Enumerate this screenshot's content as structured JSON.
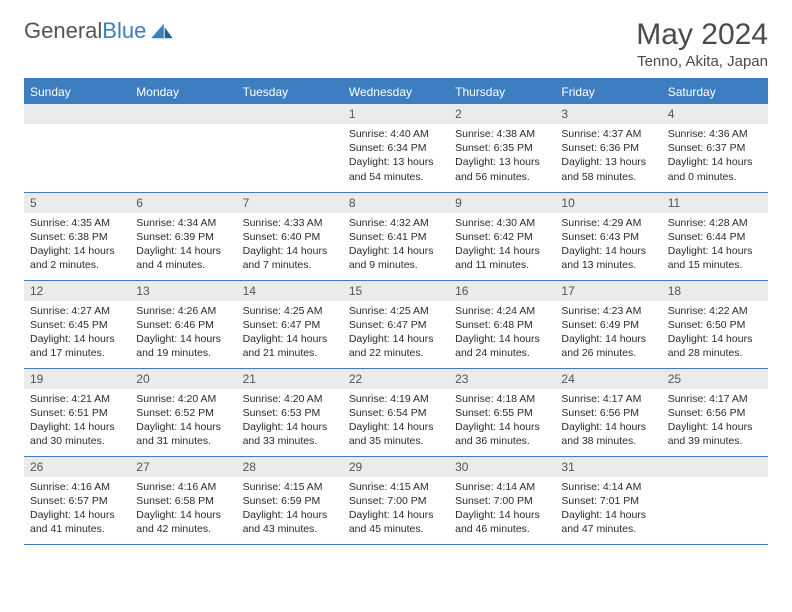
{
  "logo": {
    "text1": "General",
    "text2": "Blue"
  },
  "header": {
    "title": "May 2024",
    "location": "Tenno, Akita, Japan"
  },
  "colors": {
    "brand": "#3c7ec0",
    "headerText": "#ffffff",
    "dayStrip": "#e9ebec",
    "text": "#333333"
  },
  "dayNames": [
    "Sunday",
    "Monday",
    "Tuesday",
    "Wednesday",
    "Thursday",
    "Friday",
    "Saturday"
  ],
  "weeks": [
    [
      {
        "n": "",
        "sunrise": "",
        "sunset": "",
        "daylight": ""
      },
      {
        "n": "",
        "sunrise": "",
        "sunset": "",
        "daylight": ""
      },
      {
        "n": "",
        "sunrise": "",
        "sunset": "",
        "daylight": ""
      },
      {
        "n": "1",
        "sunrise": "Sunrise: 4:40 AM",
        "sunset": "Sunset: 6:34 PM",
        "daylight": "Daylight: 13 hours and 54 minutes."
      },
      {
        "n": "2",
        "sunrise": "Sunrise: 4:38 AM",
        "sunset": "Sunset: 6:35 PM",
        "daylight": "Daylight: 13 hours and 56 minutes."
      },
      {
        "n": "3",
        "sunrise": "Sunrise: 4:37 AM",
        "sunset": "Sunset: 6:36 PM",
        "daylight": "Daylight: 13 hours and 58 minutes."
      },
      {
        "n": "4",
        "sunrise": "Sunrise: 4:36 AM",
        "sunset": "Sunset: 6:37 PM",
        "daylight": "Daylight: 14 hours and 0 minutes."
      }
    ],
    [
      {
        "n": "5",
        "sunrise": "Sunrise: 4:35 AM",
        "sunset": "Sunset: 6:38 PM",
        "daylight": "Daylight: 14 hours and 2 minutes."
      },
      {
        "n": "6",
        "sunrise": "Sunrise: 4:34 AM",
        "sunset": "Sunset: 6:39 PM",
        "daylight": "Daylight: 14 hours and 4 minutes."
      },
      {
        "n": "7",
        "sunrise": "Sunrise: 4:33 AM",
        "sunset": "Sunset: 6:40 PM",
        "daylight": "Daylight: 14 hours and 7 minutes."
      },
      {
        "n": "8",
        "sunrise": "Sunrise: 4:32 AM",
        "sunset": "Sunset: 6:41 PM",
        "daylight": "Daylight: 14 hours and 9 minutes."
      },
      {
        "n": "9",
        "sunrise": "Sunrise: 4:30 AM",
        "sunset": "Sunset: 6:42 PM",
        "daylight": "Daylight: 14 hours and 11 minutes."
      },
      {
        "n": "10",
        "sunrise": "Sunrise: 4:29 AM",
        "sunset": "Sunset: 6:43 PM",
        "daylight": "Daylight: 14 hours and 13 minutes."
      },
      {
        "n": "11",
        "sunrise": "Sunrise: 4:28 AM",
        "sunset": "Sunset: 6:44 PM",
        "daylight": "Daylight: 14 hours and 15 minutes."
      }
    ],
    [
      {
        "n": "12",
        "sunrise": "Sunrise: 4:27 AM",
        "sunset": "Sunset: 6:45 PM",
        "daylight": "Daylight: 14 hours and 17 minutes."
      },
      {
        "n": "13",
        "sunrise": "Sunrise: 4:26 AM",
        "sunset": "Sunset: 6:46 PM",
        "daylight": "Daylight: 14 hours and 19 minutes."
      },
      {
        "n": "14",
        "sunrise": "Sunrise: 4:25 AM",
        "sunset": "Sunset: 6:47 PM",
        "daylight": "Daylight: 14 hours and 21 minutes."
      },
      {
        "n": "15",
        "sunrise": "Sunrise: 4:25 AM",
        "sunset": "Sunset: 6:47 PM",
        "daylight": "Daylight: 14 hours and 22 minutes."
      },
      {
        "n": "16",
        "sunrise": "Sunrise: 4:24 AM",
        "sunset": "Sunset: 6:48 PM",
        "daylight": "Daylight: 14 hours and 24 minutes."
      },
      {
        "n": "17",
        "sunrise": "Sunrise: 4:23 AM",
        "sunset": "Sunset: 6:49 PM",
        "daylight": "Daylight: 14 hours and 26 minutes."
      },
      {
        "n": "18",
        "sunrise": "Sunrise: 4:22 AM",
        "sunset": "Sunset: 6:50 PM",
        "daylight": "Daylight: 14 hours and 28 minutes."
      }
    ],
    [
      {
        "n": "19",
        "sunrise": "Sunrise: 4:21 AM",
        "sunset": "Sunset: 6:51 PM",
        "daylight": "Daylight: 14 hours and 30 minutes."
      },
      {
        "n": "20",
        "sunrise": "Sunrise: 4:20 AM",
        "sunset": "Sunset: 6:52 PM",
        "daylight": "Daylight: 14 hours and 31 minutes."
      },
      {
        "n": "21",
        "sunrise": "Sunrise: 4:20 AM",
        "sunset": "Sunset: 6:53 PM",
        "daylight": "Daylight: 14 hours and 33 minutes."
      },
      {
        "n": "22",
        "sunrise": "Sunrise: 4:19 AM",
        "sunset": "Sunset: 6:54 PM",
        "daylight": "Daylight: 14 hours and 35 minutes."
      },
      {
        "n": "23",
        "sunrise": "Sunrise: 4:18 AM",
        "sunset": "Sunset: 6:55 PM",
        "daylight": "Daylight: 14 hours and 36 minutes."
      },
      {
        "n": "24",
        "sunrise": "Sunrise: 4:17 AM",
        "sunset": "Sunset: 6:56 PM",
        "daylight": "Daylight: 14 hours and 38 minutes."
      },
      {
        "n": "25",
        "sunrise": "Sunrise: 4:17 AM",
        "sunset": "Sunset: 6:56 PM",
        "daylight": "Daylight: 14 hours and 39 minutes."
      }
    ],
    [
      {
        "n": "26",
        "sunrise": "Sunrise: 4:16 AM",
        "sunset": "Sunset: 6:57 PM",
        "daylight": "Daylight: 14 hours and 41 minutes."
      },
      {
        "n": "27",
        "sunrise": "Sunrise: 4:16 AM",
        "sunset": "Sunset: 6:58 PM",
        "daylight": "Daylight: 14 hours and 42 minutes."
      },
      {
        "n": "28",
        "sunrise": "Sunrise: 4:15 AM",
        "sunset": "Sunset: 6:59 PM",
        "daylight": "Daylight: 14 hours and 43 minutes."
      },
      {
        "n": "29",
        "sunrise": "Sunrise: 4:15 AM",
        "sunset": "Sunset: 7:00 PM",
        "daylight": "Daylight: 14 hours and 45 minutes."
      },
      {
        "n": "30",
        "sunrise": "Sunrise: 4:14 AM",
        "sunset": "Sunset: 7:00 PM",
        "daylight": "Daylight: 14 hours and 46 minutes."
      },
      {
        "n": "31",
        "sunrise": "Sunrise: 4:14 AM",
        "sunset": "Sunset: 7:01 PM",
        "daylight": "Daylight: 14 hours and 47 minutes."
      },
      {
        "n": "",
        "sunrise": "",
        "sunset": "",
        "daylight": ""
      }
    ]
  ]
}
